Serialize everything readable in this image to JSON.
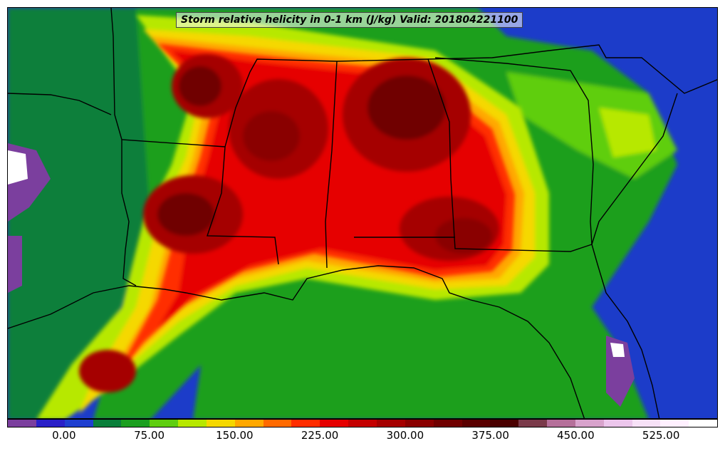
{
  "title": "Storm relative helicity in 0-1 km (J/kg) Valid: 201804221100",
  "colorbar": {
    "colors": [
      "#7b3f9e",
      "#2a20c8",
      "#1f3fd0",
      "#0a7f3a",
      "#1b9f1f",
      "#5fce10",
      "#b7e800",
      "#f5d800",
      "#ffa800",
      "#ff6a00",
      "#ff2d00",
      "#e60000",
      "#c40000",
      "#a50000",
      "#8a0000",
      "#700000",
      "#5a0000",
      "#4a0000",
      "#7a3a4a",
      "#b5709a",
      "#d8a3cc",
      "#ecc6ec",
      "#f7e1f7",
      "#fff0ff",
      "#ffffff"
    ],
    "tick_labels": [
      "0.00",
      "75.00",
      "150.00",
      "225.00",
      "300.00",
      "375.00",
      "450.00",
      "525.00"
    ],
    "tick_values": [
      0,
      75,
      150,
      225,
      300,
      375,
      450,
      525
    ],
    "range": [
      -50,
      575
    ]
  },
  "map": {
    "region": "southeastern-united-states-gulf-coast",
    "background_color": "#1c3cc9",
    "high_helicity_color": "#8a0000",
    "boundary_color": "#000000"
  }
}
